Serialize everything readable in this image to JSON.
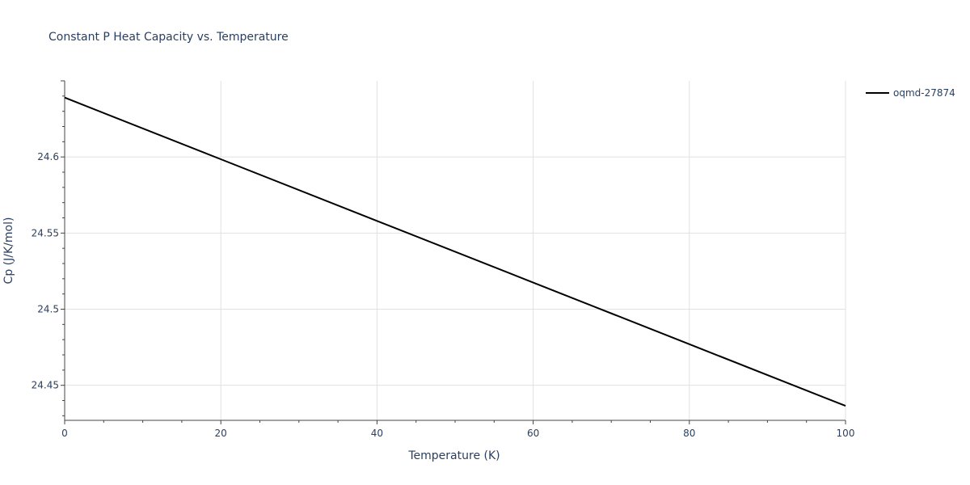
{
  "chart_data": {
    "type": "line",
    "title": "Constant P Heat Capacity vs. Temperature",
    "xlabel": "Temperature (K)",
    "ylabel": "Cp (J/K/mol)",
    "xlim": [
      0,
      100
    ],
    "ylim": [
      24.427,
      24.65
    ],
    "x_ticks": [
      0,
      20,
      40,
      60,
      80,
      100
    ],
    "x_tick_labels": [
      "0",
      "20",
      "40",
      "60",
      "80",
      "100"
    ],
    "y_ticks": [
      24.45,
      24.5,
      24.55,
      24.6
    ],
    "y_tick_labels": [
      "24.45",
      "24.5",
      "24.55",
      "24.6"
    ],
    "grid": true,
    "legend_position": "top-right",
    "series": [
      {
        "name": "oqmd-27874",
        "color": "#000000",
        "x": [
          0,
          20,
          40,
          60,
          80,
          100
        ],
        "y": [
          24.639,
          24.5985,
          24.558,
          24.5175,
          24.477,
          24.4365
        ]
      }
    ]
  }
}
